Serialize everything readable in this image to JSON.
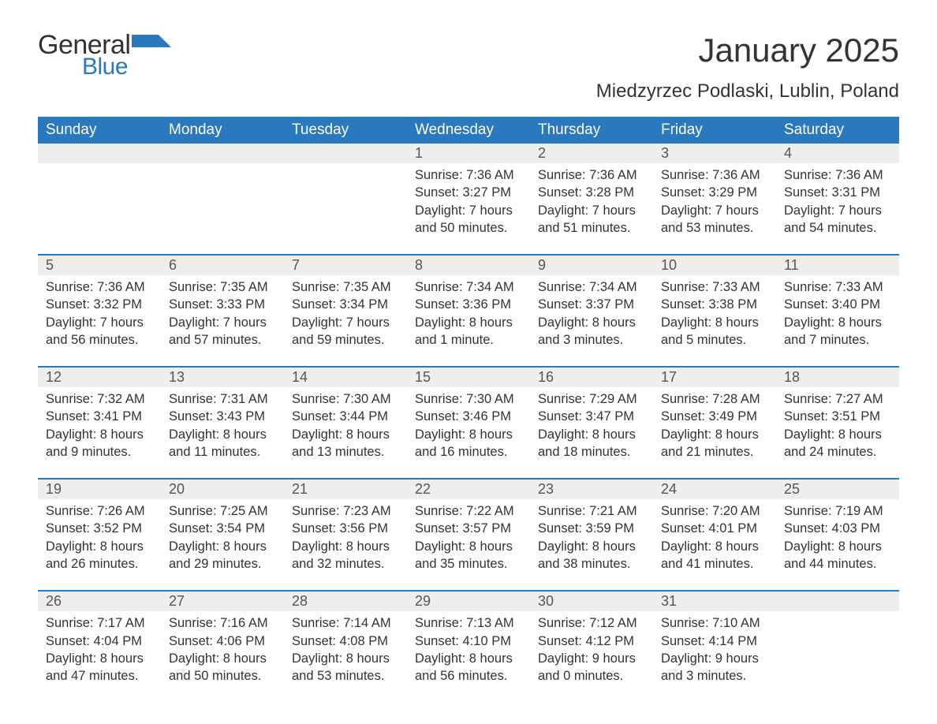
{
  "logo": {
    "general": "General",
    "blue": "Blue",
    "icon_color": "#2a78bd"
  },
  "header": {
    "month_title": "January 2025",
    "location": "Miedzyrzec Podlaski, Lublin, Poland"
  },
  "colors": {
    "header_bg": "#2a78bd",
    "header_text": "#ffffff",
    "daynum_bg": "#eeeeee",
    "daynum_border": "#2a78bd",
    "text": "#333333",
    "background": "#ffffff"
  },
  "typography": {
    "title_fontsize": 42,
    "location_fontsize": 24,
    "header_fontsize": 19,
    "daynum_fontsize": 18,
    "body_fontsize": 16.5
  },
  "layout": {
    "columns": 7,
    "rows": 5
  },
  "day_labels": [
    "Sunday",
    "Monday",
    "Tuesday",
    "Wednesday",
    "Thursday",
    "Friday",
    "Saturday"
  ],
  "weeks": [
    [
      null,
      null,
      null,
      {
        "n": "1",
        "sunrise": "7:36 AM",
        "sunset": "3:27 PM",
        "daylight": "7 hours and 50 minutes."
      },
      {
        "n": "2",
        "sunrise": "7:36 AM",
        "sunset": "3:28 PM",
        "daylight": "7 hours and 51 minutes."
      },
      {
        "n": "3",
        "sunrise": "7:36 AM",
        "sunset": "3:29 PM",
        "daylight": "7 hours and 53 minutes."
      },
      {
        "n": "4",
        "sunrise": "7:36 AM",
        "sunset": "3:31 PM",
        "daylight": "7 hours and 54 minutes."
      }
    ],
    [
      {
        "n": "5",
        "sunrise": "7:36 AM",
        "sunset": "3:32 PM",
        "daylight": "7 hours and 56 minutes."
      },
      {
        "n": "6",
        "sunrise": "7:35 AM",
        "sunset": "3:33 PM",
        "daylight": "7 hours and 57 minutes."
      },
      {
        "n": "7",
        "sunrise": "7:35 AM",
        "sunset": "3:34 PM",
        "daylight": "7 hours and 59 minutes."
      },
      {
        "n": "8",
        "sunrise": "7:34 AM",
        "sunset": "3:36 PM",
        "daylight": "8 hours and 1 minute."
      },
      {
        "n": "9",
        "sunrise": "7:34 AM",
        "sunset": "3:37 PM",
        "daylight": "8 hours and 3 minutes."
      },
      {
        "n": "10",
        "sunrise": "7:33 AM",
        "sunset": "3:38 PM",
        "daylight": "8 hours and 5 minutes."
      },
      {
        "n": "11",
        "sunrise": "7:33 AM",
        "sunset": "3:40 PM",
        "daylight": "8 hours and 7 minutes."
      }
    ],
    [
      {
        "n": "12",
        "sunrise": "7:32 AM",
        "sunset": "3:41 PM",
        "daylight": "8 hours and 9 minutes."
      },
      {
        "n": "13",
        "sunrise": "7:31 AM",
        "sunset": "3:43 PM",
        "daylight": "8 hours and 11 minutes."
      },
      {
        "n": "14",
        "sunrise": "7:30 AM",
        "sunset": "3:44 PM",
        "daylight": "8 hours and 13 minutes."
      },
      {
        "n": "15",
        "sunrise": "7:30 AM",
        "sunset": "3:46 PM",
        "daylight": "8 hours and 16 minutes."
      },
      {
        "n": "16",
        "sunrise": "7:29 AM",
        "sunset": "3:47 PM",
        "daylight": "8 hours and 18 minutes."
      },
      {
        "n": "17",
        "sunrise": "7:28 AM",
        "sunset": "3:49 PM",
        "daylight": "8 hours and 21 minutes."
      },
      {
        "n": "18",
        "sunrise": "7:27 AM",
        "sunset": "3:51 PM",
        "daylight": "8 hours and 24 minutes."
      }
    ],
    [
      {
        "n": "19",
        "sunrise": "7:26 AM",
        "sunset": "3:52 PM",
        "daylight": "8 hours and 26 minutes."
      },
      {
        "n": "20",
        "sunrise": "7:25 AM",
        "sunset": "3:54 PM",
        "daylight": "8 hours and 29 minutes."
      },
      {
        "n": "21",
        "sunrise": "7:23 AM",
        "sunset": "3:56 PM",
        "daylight": "8 hours and 32 minutes."
      },
      {
        "n": "22",
        "sunrise": "7:22 AM",
        "sunset": "3:57 PM",
        "daylight": "8 hours and 35 minutes."
      },
      {
        "n": "23",
        "sunrise": "7:21 AM",
        "sunset": "3:59 PM",
        "daylight": "8 hours and 38 minutes."
      },
      {
        "n": "24",
        "sunrise": "7:20 AM",
        "sunset": "4:01 PM",
        "daylight": "8 hours and 41 minutes."
      },
      {
        "n": "25",
        "sunrise": "7:19 AM",
        "sunset": "4:03 PM",
        "daylight": "8 hours and 44 minutes."
      }
    ],
    [
      {
        "n": "26",
        "sunrise": "7:17 AM",
        "sunset": "4:04 PM",
        "daylight": "8 hours and 47 minutes."
      },
      {
        "n": "27",
        "sunrise": "7:16 AM",
        "sunset": "4:06 PM",
        "daylight": "8 hours and 50 minutes."
      },
      {
        "n": "28",
        "sunrise": "7:14 AM",
        "sunset": "4:08 PM",
        "daylight": "8 hours and 53 minutes."
      },
      {
        "n": "29",
        "sunrise": "7:13 AM",
        "sunset": "4:10 PM",
        "daylight": "8 hours and 56 minutes."
      },
      {
        "n": "30",
        "sunrise": "7:12 AM",
        "sunset": "4:12 PM",
        "daylight": "9 hours and 0 minutes."
      },
      {
        "n": "31",
        "sunrise": "7:10 AM",
        "sunset": "4:14 PM",
        "daylight": "9 hours and 3 minutes."
      },
      null
    ]
  ],
  "labels": {
    "sunrise": "Sunrise:",
    "sunset": "Sunset:",
    "daylight": "Daylight:"
  }
}
